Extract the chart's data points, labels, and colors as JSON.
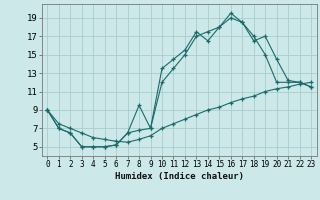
{
  "xlabel": "Humidex (Indice chaleur)",
  "bg_color": "#cce8e8",
  "grid_color": "#aacccc",
  "line_color": "#1a6b6b",
  "xlim": [
    -0.5,
    23.5
  ],
  "ylim": [
    4.0,
    20.5
  ],
  "xticks": [
    0,
    1,
    2,
    3,
    4,
    5,
    6,
    7,
    8,
    9,
    10,
    11,
    12,
    13,
    14,
    15,
    16,
    17,
    18,
    19,
    20,
    21,
    22,
    23
  ],
  "yticks": [
    5,
    7,
    9,
    11,
    13,
    15,
    17,
    19
  ],
  "line1_x": [
    0,
    1,
    2,
    3,
    4,
    5,
    6,
    7,
    8,
    9,
    10,
    11,
    12,
    13,
    14,
    15,
    16,
    17,
    18,
    19,
    20,
    21,
    22,
    23
  ],
  "line1_y": [
    9,
    7,
    6.5,
    5,
    5,
    5,
    5.2,
    6.5,
    9.5,
    7.0,
    13.5,
    14.5,
    15.5,
    17.5,
    16.5,
    18.0,
    19.5,
    18.5,
    17.0,
    15.0,
    12.0,
    12.0,
    12.0,
    11.5
  ],
  "line2_x": [
    0,
    1,
    2,
    3,
    4,
    5,
    6,
    7,
    8,
    9,
    10,
    11,
    12,
    13,
    14,
    15,
    16,
    17,
    18,
    19,
    20,
    21,
    22,
    23
  ],
  "line2_y": [
    9,
    7,
    6.5,
    5,
    5,
    5,
    5.2,
    6.5,
    6.8,
    7.0,
    12.0,
    13.5,
    15.0,
    17.0,
    17.5,
    18.0,
    19.0,
    18.5,
    16.5,
    17.0,
    14.5,
    12.2,
    12.0,
    11.5
  ],
  "line3_x": [
    0,
    1,
    2,
    3,
    4,
    5,
    6,
    7,
    8,
    9,
    10,
    11,
    12,
    13,
    14,
    15,
    16,
    17,
    18,
    19,
    20,
    21,
    22,
    23
  ],
  "line3_y": [
    9,
    7.5,
    7.0,
    6.5,
    6.0,
    5.8,
    5.6,
    5.5,
    5.8,
    6.2,
    7.0,
    7.5,
    8.0,
    8.5,
    9.0,
    9.3,
    9.8,
    10.2,
    10.5,
    11.0,
    11.3,
    11.5,
    11.8,
    12.0
  ]
}
